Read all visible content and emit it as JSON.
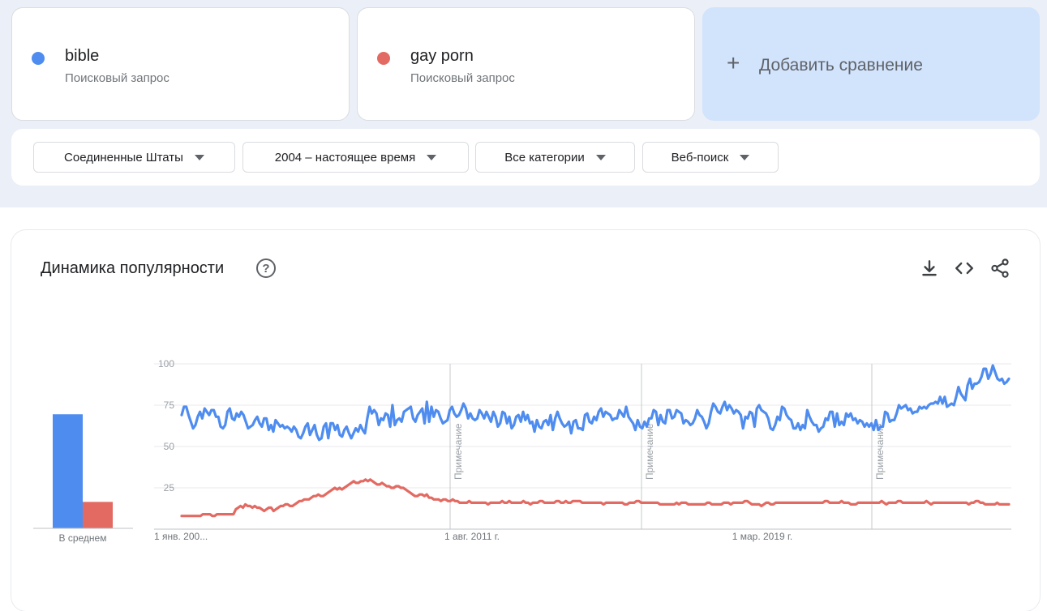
{
  "terms": [
    {
      "name": "bible",
      "type": "Поисковый запрос",
      "color": "#4e8cf0"
    },
    {
      "name": "gay porn",
      "type": "Поисковый запрос",
      "color": "#e36a62"
    }
  ],
  "add_compare": {
    "icon": "plus-icon",
    "label": "Добавить сравнение"
  },
  "filters": {
    "region": "Соединенные Штаты",
    "period": "2004 – настоящее время",
    "category": "Все категории",
    "search_type": "Веб-поиск"
  },
  "chart_panel": {
    "title": "Динамика популярности",
    "icons": [
      "help-icon",
      "download-icon",
      "embed-code-icon",
      "share-icon"
    ]
  },
  "chart_data": {
    "type": "line",
    "x_tick_labels": [
      "1 янв. 200...",
      "1 авг. 2011 г.",
      "1 мар. 2019 г."
    ],
    "y_ticks": [
      25,
      50,
      75,
      100
    ],
    "ylim": [
      0,
      100
    ],
    "grid": true,
    "note_label": "Примечание",
    "average_label": "В среднем",
    "averages": [
      69,
      16
    ],
    "series": [
      {
        "name": "bible",
        "color": "#4e8cf0",
        "values": [
          69,
          74,
          74,
          69,
          65,
          61,
          63,
          68,
          71,
          67,
          73,
          71,
          69,
          72,
          72,
          68,
          68,
          62,
          61,
          63,
          71,
          73,
          67,
          66,
          70,
          68,
          71,
          69,
          65,
          61,
          62,
          63,
          66,
          68,
          64,
          62,
          67,
          67,
          60,
          63,
          59,
          66,
          64,
          62,
          63,
          61,
          62,
          61,
          59,
          62,
          60,
          56,
          55,
          58,
          62,
          64,
          57,
          60,
          63,
          57,
          54,
          55,
          62,
          64,
          55,
          64,
          64,
          60,
          63,
          57,
          56,
          60,
          62,
          58,
          55,
          58,
          61,
          59,
          63,
          60,
          58,
          67,
          74,
          70,
          72,
          70,
          63,
          67,
          66,
          70,
          69,
          62,
          75,
          63,
          66,
          67,
          65,
          71,
          72,
          73,
          74,
          67,
          65,
          69,
          71,
          73,
          64,
          77,
          65,
          74,
          68,
          72,
          71,
          67,
          64,
          65,
          66,
          72,
          74,
          70,
          68,
          69,
          72,
          76,
          73,
          67,
          70,
          67,
          66,
          67,
          72,
          70,
          67,
          71,
          68,
          65,
          71,
          68,
          62,
          64,
          71,
          70,
          64,
          68,
          61,
          63,
          68,
          69,
          65,
          71,
          66,
          69,
          64,
          65,
          59,
          66,
          62,
          61,
          65,
          66,
          63,
          69,
          60,
          67,
          71,
          67,
          64,
          62,
          63,
          65,
          58,
          65,
          66,
          61,
          61,
          60,
          69,
          70,
          65,
          64,
          68,
          66,
          71,
          73,
          68,
          71,
          70,
          69,
          66,
          67,
          67,
          72,
          70,
          68,
          74,
          68,
          66,
          64,
          60,
          66,
          62,
          61,
          65,
          62,
          67,
          67,
          72,
          71,
          63,
          69,
          65,
          64,
          72,
          72,
          67,
          68,
          72,
          71,
          70,
          64,
          66,
          65,
          63,
          64,
          67,
          72,
          69,
          68,
          65,
          61,
          64,
          71,
          76,
          74,
          71,
          70,
          74,
          77,
          72,
          75,
          73,
          70,
          72,
          71,
          69,
          61,
          68,
          67,
          71,
          70,
          62,
          73,
          75,
          72,
          71,
          70,
          67,
          61,
          60,
          63,
          68,
          66,
          74,
          73,
          69,
          67,
          66,
          61,
          61,
          64,
          60,
          63,
          61,
          72,
          68,
          65,
          63,
          63,
          59,
          61,
          62,
          67,
          66,
          71,
          71,
          62,
          70,
          63,
          65,
          63,
          70,
          68,
          70,
          66,
          67,
          64,
          66,
          65,
          62,
          64,
          62,
          64,
          60,
          66,
          60,
          62,
          62,
          71,
          70,
          65,
          66,
          66,
          70,
          75,
          73,
          74,
          75,
          72,
          73,
          70,
          71,
          71,
          74,
          73,
          74,
          73,
          75,
          76,
          76,
          77,
          76,
          80,
          76,
          80,
          74,
          75,
          76,
          75,
          80,
          86,
          82,
          80,
          78,
          87,
          91,
          85,
          88,
          88,
          89,
          92,
          97,
          97,
          91,
          94,
          99,
          95,
          91,
          90,
          91,
          88,
          89,
          91
        ]
      },
      {
        "name": "gay porn",
        "color": "#e36a62",
        "values": [
          8,
          8,
          8,
          8,
          8,
          8,
          8,
          8,
          8,
          9,
          9,
          9,
          9,
          8,
          8,
          9,
          9,
          9,
          9,
          9,
          9,
          9,
          9,
          12,
          13,
          14,
          13,
          15,
          14,
          14,
          13,
          14,
          13,
          13,
          12,
          11,
          12,
          13,
          13,
          11,
          12,
          13,
          14,
          14,
          15,
          15,
          14,
          14,
          15,
          16,
          17,
          17,
          18,
          18,
          18,
          19,
          20,
          20,
          21,
          20,
          20,
          21,
          22,
          23,
          24,
          25,
          24,
          25,
          24,
          25,
          26,
          27,
          28,
          29,
          28,
          28,
          29,
          29,
          30,
          29,
          30,
          29,
          28,
          27,
          27,
          28,
          27,
          26,
          26,
          25,
          25,
          26,
          26,
          25,
          25,
          24,
          23,
          22,
          21,
          20,
          20,
          21,
          21,
          20,
          21,
          19,
          19,
          18,
          18,
          18,
          17,
          18,
          18,
          17,
          17,
          18,
          17,
          17,
          16,
          16,
          16,
          16,
          17,
          16,
          16,
          16,
          16,
          16,
          16,
          16,
          15,
          16,
          16,
          16,
          16,
          16,
          17,
          16,
          16,
          17,
          16,
          16,
          16,
          16,
          16,
          17,
          16,
          16,
          15,
          16,
          16,
          16,
          17,
          17,
          16,
          16,
          16,
          16,
          16,
          17,
          17,
          16,
          16,
          17,
          16,
          16,
          17,
          17,
          17,
          17,
          16,
          16,
          16,
          16,
          16,
          16,
          16,
          16,
          16,
          15,
          16,
          16,
          16,
          16,
          16,
          16,
          16,
          16,
          15,
          15,
          16,
          16,
          16,
          17,
          17,
          16,
          16,
          16,
          16,
          16,
          16,
          16,
          16,
          15,
          15,
          15,
          15,
          15,
          15,
          15,
          16,
          15,
          16,
          16,
          16,
          15,
          15,
          15,
          15,
          15,
          15,
          15,
          15,
          16,
          16,
          15,
          15,
          15,
          15,
          15,
          16,
          16,
          16,
          15,
          16,
          16,
          16,
          16,
          16,
          17,
          17,
          16,
          15,
          15,
          15,
          15,
          14,
          15,
          16,
          16,
          15,
          15,
          16,
          16,
          16,
          16,
          16,
          16,
          16,
          16,
          16,
          16,
          16,
          16,
          16,
          16,
          16,
          16,
          16,
          16,
          16,
          16,
          16,
          17,
          17,
          16,
          16,
          16,
          16,
          16,
          17,
          16,
          16,
          16,
          15,
          15,
          15,
          16,
          16,
          16,
          16,
          16,
          16,
          16,
          16,
          16,
          16,
          17,
          16,
          15,
          16,
          16,
          16,
          16,
          17,
          17,
          16,
          16,
          16,
          16,
          16,
          16,
          16,
          16,
          16,
          16,
          17,
          16,
          15,
          16,
          16,
          16,
          16,
          16,
          16,
          16,
          16,
          16,
          16,
          16,
          16,
          16,
          16,
          16,
          15,
          16,
          16,
          17,
          17,
          16,
          16,
          15,
          15,
          15,
          15,
          15,
          16,
          15,
          15,
          15,
          15,
          15
        ]
      }
    ]
  }
}
